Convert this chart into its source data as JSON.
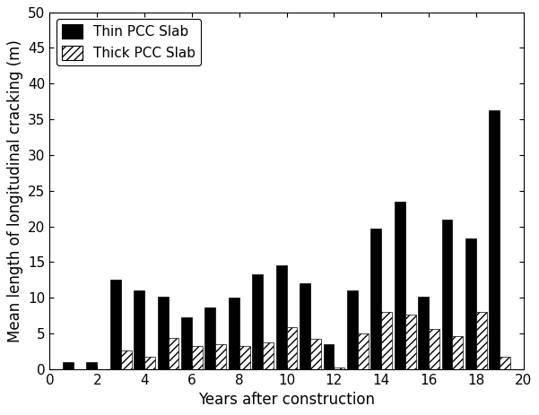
{
  "years": [
    1,
    2,
    3,
    4,
    5,
    6,
    7,
    8,
    9,
    10,
    11,
    12,
    13,
    14,
    15,
    16,
    17,
    18,
    19
  ],
  "thin_pcc": [
    1.0,
    1.0,
    12.5,
    11.0,
    10.2,
    7.3,
    8.6,
    10.0,
    13.3,
    14.6,
    12.0,
    3.5,
    11.0,
    19.7,
    23.5,
    10.2,
    21.0,
    18.3,
    36.3
  ],
  "thick_pcc": [
    0,
    0,
    2.6,
    1.8,
    4.4,
    3.2,
    3.5,
    3.3,
    3.8,
    5.9,
    4.2,
    0.3,
    5.0,
    8.0,
    7.7,
    5.7,
    4.7,
    8.0,
    1.7
  ],
  "xlabel": "Years after construction",
  "ylabel": "Mean length of longitudinal cracking (m)",
  "xlim": [
    0,
    20
  ],
  "ylim": [
    0,
    50
  ],
  "yticks": [
    0,
    5,
    10,
    15,
    20,
    25,
    30,
    35,
    40,
    45,
    50
  ],
  "xticks": [
    0,
    2,
    4,
    6,
    8,
    10,
    12,
    14,
    16,
    18,
    20
  ],
  "thin_label": "Thin PCC Slab",
  "thick_label": "Thick PCC Slab",
  "bar_width": 0.45,
  "thin_color": "#000000",
  "thick_color": "#ffffff",
  "thick_hatch": "////",
  "thin_hatch": "",
  "background_color": "#ffffff",
  "tick_fontsize": 11,
  "label_fontsize": 12,
  "legend_fontsize": 11
}
